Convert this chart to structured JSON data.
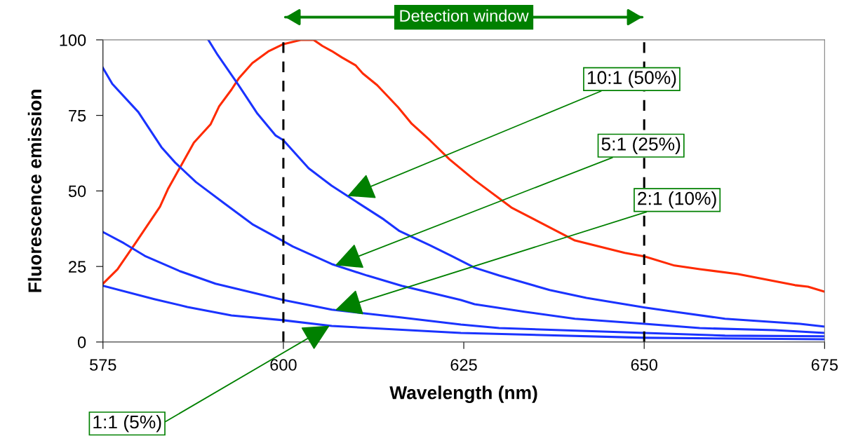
{
  "chart_data": {
    "type": "line",
    "xlabel": "Wavelength (nm)",
    "ylabel": "Fluorescence emission",
    "xlim": [
      575,
      675
    ],
    "xticks": [
      575,
      600,
      625,
      650,
      675
    ],
    "ylim": [
      0,
      100
    ],
    "yticks": [
      0,
      25,
      50,
      75,
      100
    ],
    "grid": false,
    "legend": false,
    "marker": "none",
    "line_style": "solid",
    "ref_lines": [
      {
        "axis": "x",
        "value": 600,
        "color": "#000000",
        "line_style": "dashed"
      },
      {
        "axis": "x",
        "value": 650,
        "color": "#000000",
        "line_style": "dashed"
      }
    ],
    "annotations": [
      "Detection window",
      {
        "text": "10:1 (50%)",
        "x": 608.9,
        "y": 48.3
      },
      {
        "text": "5:1 (25%)",
        "x": 607.2,
        "y": 25.4
      },
      {
        "text": "2:1 (10%)",
        "x": 607.2,
        "y": 10.6
      },
      {
        "text": "1:1 (5%)",
        "x": 606.4,
        "y": 5.4
      }
    ],
    "series": [
      {
        "color": "#ff2a00",
        "x": [
          575,
          577,
          579.5,
          582.9,
          584,
          587.6,
          589.9,
          591.1,
          592.8,
          593.8,
          595.7,
          598,
          600,
          602.5,
          604.2,
          605.4,
          606.7,
          608.1,
          610,
          611,
          613,
          615.9,
          617.8,
          620.3,
          623,
          626.5,
          631.6,
          640.4,
          647.3,
          650.1,
          654.2,
          657.7,
          663,
          670.9,
          672.7,
          674.9
        ],
        "values": [
          19.3,
          24,
          32.7,
          44.8,
          50.6,
          66,
          72,
          78,
          83.5,
          87.2,
          92.3,
          96.3,
          98.6,
          100,
          100,
          98,
          96.3,
          94.2,
          91.6,
          88.9,
          85,
          77.7,
          72.2,
          66.8,
          60.5,
          53.6,
          44.5,
          33.6,
          29.5,
          28.3,
          25.3,
          24.1,
          22.5,
          18.8,
          18.3,
          16.7
        ]
      },
      {
        "color": "#1a33ff",
        "x": [
          589.6,
          590.9,
          593.8,
          596.4,
          598.9,
          600,
          603.5,
          606.7,
          610,
          613.9,
          616.1,
          620.3,
          623.3,
          626.5,
          629.9,
          636.9,
          642,
          650.1,
          654.2,
          661.2,
          671.6,
          674.9
        ],
        "values": [
          100,
          95,
          85,
          75.6,
          68.4,
          66.8,
          57.5,
          51.7,
          46.6,
          40.6,
          36.7,
          32,
          28.5,
          24.6,
          22,
          17.2,
          14.6,
          11.4,
          10,
          7.7,
          6,
          5.1
        ]
      },
      {
        "color": "#1a33ff",
        "x": [
          575,
          576.3,
          579.9,
          583.1,
          585,
          587.9,
          591.8,
          595.7,
          598.9,
          601.3,
          606.7,
          611.6,
          616.4,
          624.6,
          626.5,
          633.4,
          640.4,
          650.1,
          657.7,
          668.1,
          674.9
        ],
        "values": [
          90.7,
          85.4,
          76.1,
          64.5,
          59.4,
          52.9,
          45.9,
          39,
          34.8,
          31.6,
          25.8,
          22,
          18.6,
          13.9,
          12.5,
          10,
          7.7,
          6,
          4.6,
          3.9,
          3
        ]
      },
      {
        "color": "#1a33ff",
        "x": [
          575,
          577.9,
          580.8,
          585.7,
          590.6,
          600,
          606.7,
          616.4,
          624.6,
          629.9,
          650.1,
          661.2,
          674.9
        ],
        "values": [
          36.4,
          32.7,
          28.5,
          23.4,
          19.3,
          13.9,
          10.7,
          8.1,
          5.8,
          4.6,
          3,
          2.1,
          1.9
        ]
      },
      {
        "color": "#1a33ff",
        "x": [
          575,
          582.1,
          586.7,
          592.8,
          600,
          606.7,
          624.6,
          650.1,
          674.9
        ],
        "values": [
          18.6,
          14.2,
          11.6,
          8.8,
          7.2,
          5.3,
          3,
          1.4,
          0.9
        ]
      }
    ]
  }
}
